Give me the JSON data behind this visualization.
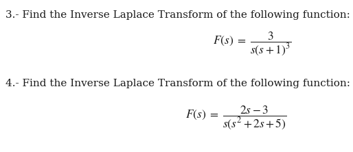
{
  "bg_color": "#ffffff",
  "text_color": "#1a1a1a",
  "problem3_label": "3.- Find the Inverse Laplace Transform of the following function:",
  "problem4_label": "4.- Find the Inverse Laplace Transform of the following function:",
  "label_fontsize": 11.0,
  "formula_fontsize": 12.5
}
